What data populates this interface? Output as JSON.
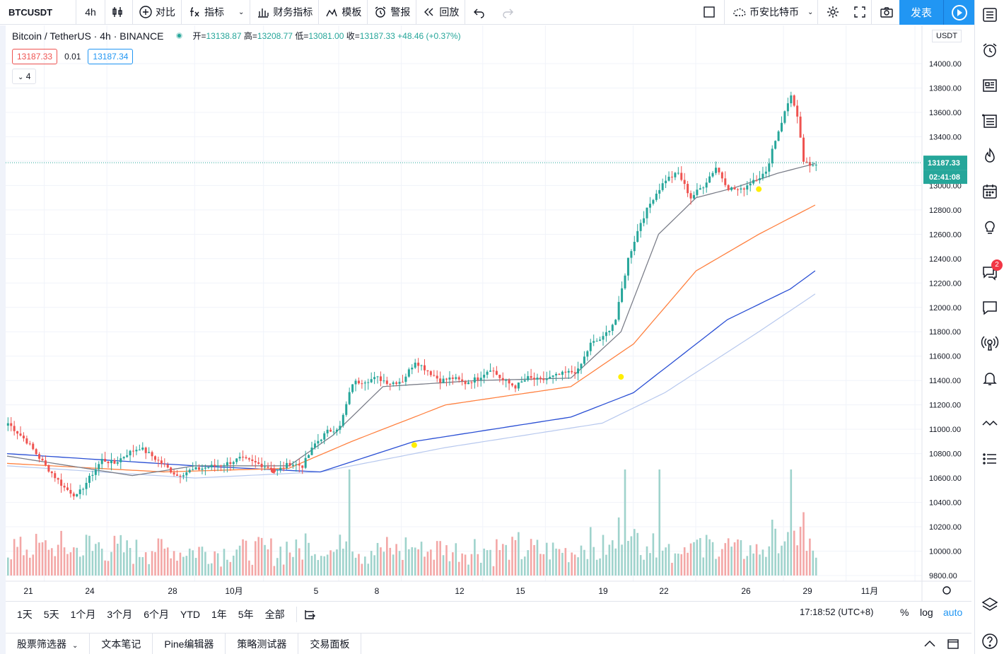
{
  "header": {
    "symbol": "BTCUSDT",
    "interval": "4h",
    "compare_label": "对比",
    "indicators_label": "指标",
    "financials_label": "财务指标",
    "templates_label": "模板",
    "alert_label": "警报",
    "replay_label": "回放",
    "watch_label": "币安比特币",
    "publish_label": "发表"
  },
  "legend": {
    "title": "Bitcoin / TetherUS · 4h · BINANCE",
    "open_label": "开=",
    "open": "13138.87",
    "high_label": "高=",
    "high": "13208.77",
    "low_label": "低=",
    "low": "13081.00",
    "close_label": "收=",
    "close": "13187.33",
    "change": "+48.46 (+0.37%)"
  },
  "quote": {
    "bid": "13187.33",
    "spread": "0.01",
    "ask": "13187.34",
    "collapsed_count": "4"
  },
  "price_axis": {
    "currency": "USDT",
    "last_price": "13187.33",
    "countdown": "02:41:08",
    "ticks": [
      "14000.00",
      "13800.00",
      "13600.00",
      "13400.00",
      "13200.00",
      "13000.00",
      "12800.00",
      "12600.00",
      "12400.00",
      "12200.00",
      "12000.00",
      "11800.00",
      "11600.00",
      "11400.00",
      "11200.00",
      "11000.00",
      "10800.00",
      "10600.00",
      "10400.00",
      "10200.00",
      "10000.00",
      "9800.00"
    ]
  },
  "time_axis": {
    "ticks": [
      "21",
      "24",
      "28",
      "10月",
      "5",
      "8",
      "12",
      "15",
      "19",
      "22",
      "26",
      "29",
      "11月"
    ]
  },
  "timeframes": [
    "1天",
    "5天",
    "1个月",
    "3个月",
    "6个月",
    "YTD",
    "1年",
    "5年",
    "全部"
  ],
  "status": {
    "clock": "17:18:52 (UTC+8)",
    "percent": "%",
    "log": "log",
    "auto": "auto"
  },
  "bottom_tabs": [
    "股票筛选器",
    "文本笔记",
    "Pine编辑器",
    "策略测试器",
    "交易面板"
  ],
  "alerts_badge": "2",
  "colors": {
    "up": "#26a69a",
    "down": "#ef5350",
    "vol_up": "#9fd3cc",
    "vol_down": "#f3a7a6",
    "ma_gray": "#787b86",
    "ma_orange": "#ff7f3e",
    "ma_blue": "#2a4fd4",
    "accent": "#2196f3"
  },
  "chart_data": {
    "type": "candlestick",
    "title": "Bitcoin / TetherUS · 4h · BINANCE",
    "ylim": [
      9780,
      14200
    ],
    "x_ticks": [
      "21",
      "24",
      "28",
      "10月",
      "5",
      "8",
      "12",
      "15",
      "19",
      "22",
      "26",
      "29",
      "11月"
    ],
    "close_path": [
      [
        0,
        11050
      ],
      [
        6,
        10900
      ],
      [
        12,
        10700
      ],
      [
        18,
        10520
      ],
      [
        22,
        10450
      ],
      [
        26,
        10600
      ],
      [
        30,
        10750
      ],
      [
        34,
        10720
      ],
      [
        38,
        10800
      ],
      [
        42,
        10850
      ],
      [
        46,
        10780
      ],
      [
        50,
        10700
      ],
      [
        54,
        10620
      ],
      [
        58,
        10660
      ],
      [
        62,
        10680
      ],
      [
        66,
        10700
      ],
      [
        70,
        10720
      ],
      [
        74,
        10760
      ],
      [
        78,
        10730
      ],
      [
        82,
        10700
      ],
      [
        86,
        10660
      ],
      [
        90,
        10720
      ],
      [
        94,
        10700
      ],
      [
        98,
        10880
      ],
      [
        102,
        10980
      ],
      [
        106,
        11020
      ],
      [
        110,
        11380
      ],
      [
        114,
        11400
      ],
      [
        118,
        11420
      ],
      [
        122,
        11380
      ],
      [
        126,
        11400
      ],
      [
        130,
        11560
      ],
      [
        134,
        11480
      ],
      [
        138,
        11400
      ],
      [
        142,
        11420
      ],
      [
        146,
        11380
      ],
      [
        150,
        11420
      ],
      [
        154,
        11500
      ],
      [
        158,
        11400
      ],
      [
        162,
        11350
      ],
      [
        166,
        11420
      ],
      [
        170,
        11400
      ],
      [
        174,
        11430
      ],
      [
        178,
        11460
      ],
      [
        182,
        11480
      ],
      [
        186,
        11700
      ],
      [
        190,
        11750
      ],
      [
        194,
        11900
      ],
      [
        198,
        12400
      ],
      [
        202,
        12700
      ],
      [
        206,
        12900
      ],
      [
        210,
        13050
      ],
      [
        214,
        13100
      ],
      [
        218,
        12900
      ],
      [
        222,
        13000
      ],
      [
        226,
        13150
      ],
      [
        230,
        12980
      ],
      [
        234,
        12960
      ],
      [
        238,
        13050
      ],
      [
        242,
        13100
      ],
      [
        244,
        13300
      ],
      [
        246,
        13450
      ],
      [
        248,
        13600
      ],
      [
        250,
        13750
      ],
      [
        252,
        13550
      ],
      [
        254,
        13200
      ],
      [
        256,
        13150
      ],
      [
        258,
        13187.33
      ]
    ],
    "ma_short": [
      [
        0,
        10780
      ],
      [
        40,
        10620
      ],
      [
        60,
        10700
      ],
      [
        90,
        10700
      ],
      [
        104,
        10950
      ],
      [
        120,
        11350
      ],
      [
        150,
        11400
      ],
      [
        180,
        11420
      ],
      [
        196,
        11800
      ],
      [
        208,
        12600
      ],
      [
        220,
        12900
      ],
      [
        232,
        12980
      ],
      [
        246,
        13100
      ],
      [
        258,
        13180
      ]
    ],
    "ma_mid": [
      [
        0,
        10720
      ],
      [
        50,
        10650
      ],
      [
        90,
        10680
      ],
      [
        110,
        10900
      ],
      [
        140,
        11200
      ],
      [
        180,
        11350
      ],
      [
        200,
        11700
      ],
      [
        220,
        12300
      ],
      [
        240,
        12600
      ],
      [
        258,
        12840
      ]
    ],
    "ma_long": [
      [
        0,
        10800
      ],
      [
        60,
        10700
      ],
      [
        100,
        10650
      ],
      [
        130,
        10900
      ],
      [
        180,
        11100
      ],
      [
        200,
        11300
      ],
      [
        230,
        11900
      ],
      [
        250,
        12150
      ],
      [
        258,
        12300
      ]
    ],
    "ma_long2": [
      [
        0,
        10700
      ],
      [
        60,
        10600
      ],
      [
        100,
        10650
      ],
      [
        140,
        10850
      ],
      [
        190,
        11050
      ],
      [
        210,
        11300
      ],
      [
        240,
        11800
      ],
      [
        258,
        12110
      ]
    ],
    "current_price": 13187.33
  }
}
